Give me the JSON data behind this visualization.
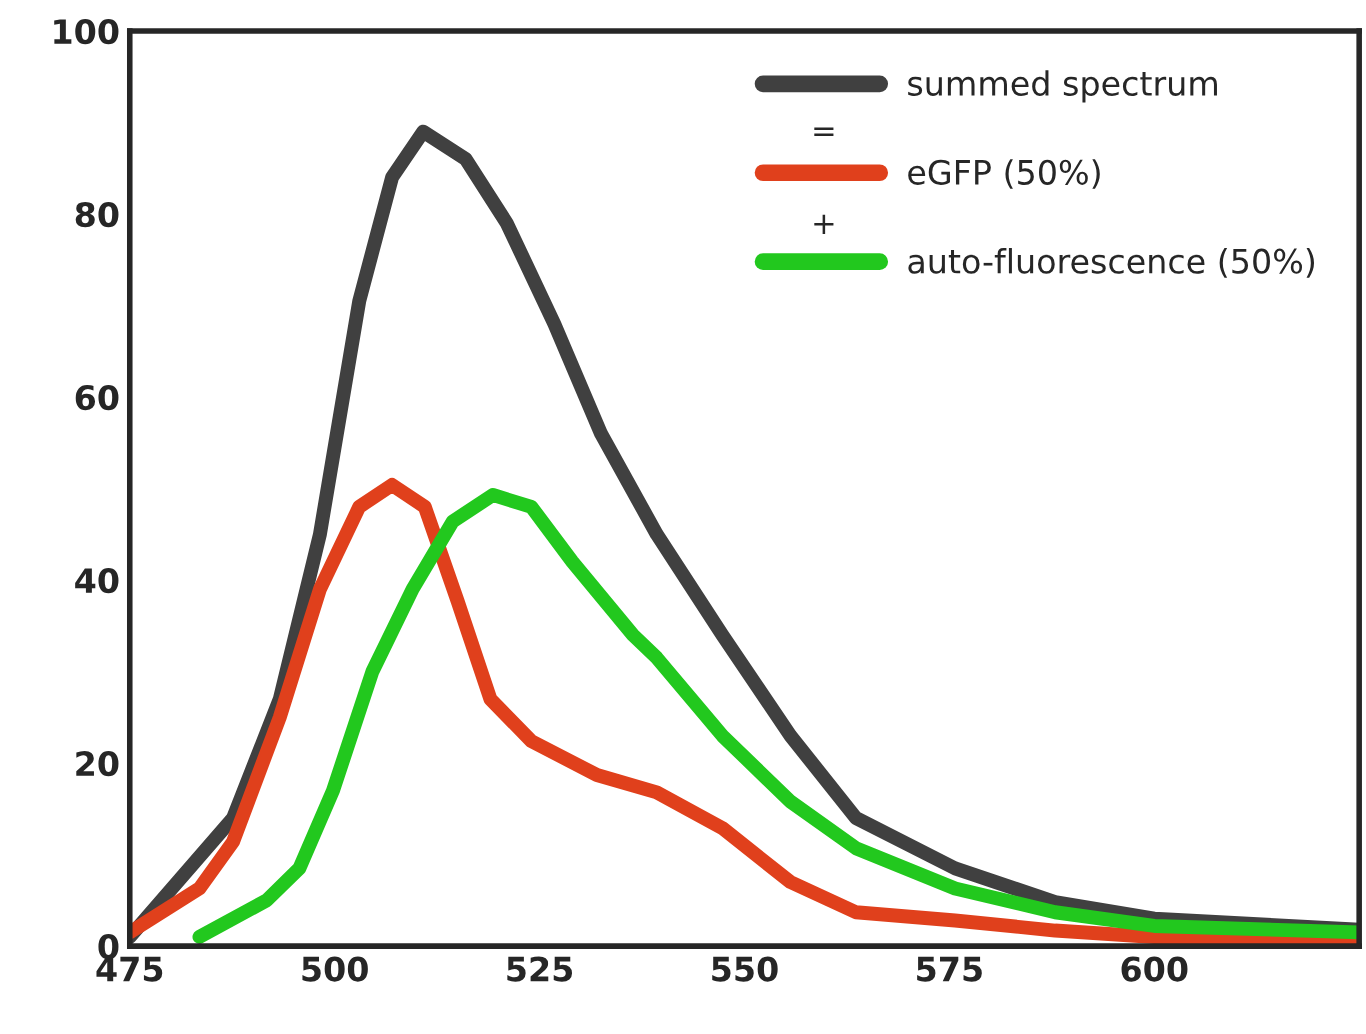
{
  "chart_data": {
    "type": "line",
    "xlim": [
      475,
      625
    ],
    "ylim": [
      0,
      100
    ],
    "xticks": [
      475,
      500,
      525,
      550,
      575,
      600
    ],
    "yticks": [
      0,
      20,
      40,
      60,
      80,
      100
    ],
    "legend": "top right",
    "grid": false,
    "marker": "none",
    "line_style": "solid",
    "annotations": [
      "=",
      "+"
    ],
    "series": [
      {
        "name": "summed spectrum",
        "color": "#404040",
        "x": [
          475,
          487.6,
          493.3,
          498.2,
          503,
          507,
          510.8,
          516,
          521,
          526.8,
          532.5,
          539.3,
          547.3,
          555.6,
          563.6,
          575.7,
          587.9,
          600,
          625
        ],
        "values": [
          1,
          14,
          27,
          45,
          70.5,
          84,
          89,
          86,
          79,
          68,
          56,
          45,
          34,
          23,
          14,
          8.5,
          4.8,
          3,
          1.8
        ]
      },
      {
        "name": "eGFP (50%)",
        "color": "#e0401c",
        "x": [
          475,
          483.5,
          487.6,
          493.3,
          498.2,
          503,
          507,
          511,
          515,
          519,
          524,
          532,
          539.3,
          547.3,
          555.6,
          563.6,
          575.7,
          587.9,
          600,
          612,
          625
        ],
        "values": [
          1.5,
          6.3,
          11.4,
          25,
          39,
          48,
          50.4,
          48,
          37.7,
          27,
          22.4,
          18.7,
          16.8,
          12.9,
          7,
          3.7,
          2.8,
          1.7,
          1,
          0.6,
          0.3
        ]
      },
      {
        "name": "auto-fluorescence (50%)",
        "color": "#22c81e",
        "x": [
          483.5,
          491.7,
          495.7,
          499.8,
          504.6,
          509.5,
          514.4,
          519.3,
          524,
          529,
          536.4,
          539.3,
          547.3,
          555.6,
          563.6,
          575.7,
          587.9,
          600,
          625
        ],
        "values": [
          1,
          5,
          8.5,
          17,
          30,
          39,
          46.4,
          49.3,
          48,
          42,
          34,
          31.5,
          23,
          15.8,
          10.7,
          6.3,
          3.7,
          2.2,
          1.5
        ]
      }
    ]
  }
}
